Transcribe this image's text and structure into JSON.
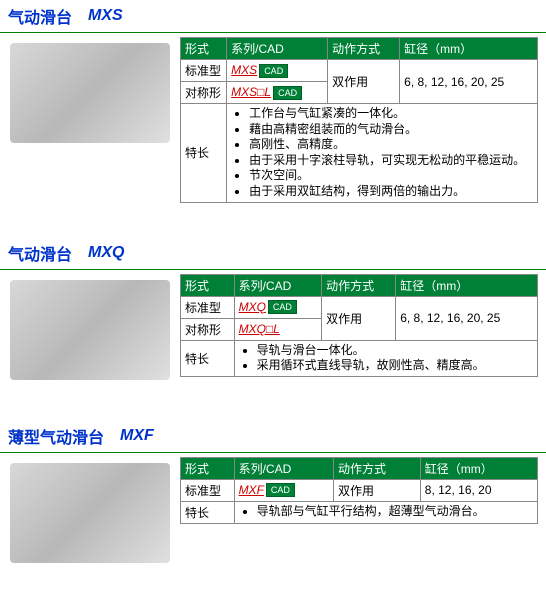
{
  "cad_label": "CAD",
  "headers": {
    "form": "形式",
    "series": "系列/CAD",
    "motion": "动作方式",
    "bore": "缸径（mm）",
    "features": "特长"
  },
  "sections": [
    {
      "id": "mxs",
      "title_cn": "气动滑台",
      "title_model": "MXS",
      "img_alt": "MXS",
      "rows": [
        {
          "form": "标准型",
          "series_link": "MXS",
          "has_cad": true,
          "motion": "双作用",
          "motion_rowspan": 2,
          "bore": "6, 8, 12, 16, 20, 25",
          "bore_rowspan": 2
        },
        {
          "form": "对称形",
          "series_link": "MXS□L",
          "has_cad": true
        }
      ],
      "features": [
        "工作台与气缸紧凑的一体化。",
        "藉由高精密组装而的气动滑台。",
        "高刚性、高精度。",
        "由于采用十字滚柱导轨，可实现无松动的平稳运动。",
        "节次空间。",
        "由于采用双缸结构，得到两倍的输出力。"
      ]
    },
    {
      "id": "mxq",
      "title_cn": "气动滑台",
      "title_model": "MXQ",
      "img_alt": "MXQ",
      "rows": [
        {
          "form": "标准型",
          "series_link": "MXQ",
          "has_cad": true,
          "motion": "双作用",
          "motion_rowspan": 2,
          "bore": "6, 8, 12, 16, 20, 25",
          "bore_rowspan": 2
        },
        {
          "form": "对称形",
          "series_link": "MXQ□L",
          "has_cad": false
        }
      ],
      "features": [
        "导轨与滑台一体化。",
        "采用循环式直线导轨，故刚性高、精度高。"
      ]
    },
    {
      "id": "mxf",
      "title_cn": "薄型气动滑台",
      "title_model": "MXF",
      "img_alt": "MXF",
      "rows": [
        {
          "form": "标准型",
          "series_link": "MXF",
          "has_cad": true,
          "motion": "双作用",
          "bore": "8, 12, 16, 20"
        }
      ],
      "features": [
        "导轨部与气缸平行结构，超薄型气动滑台。"
      ]
    }
  ]
}
